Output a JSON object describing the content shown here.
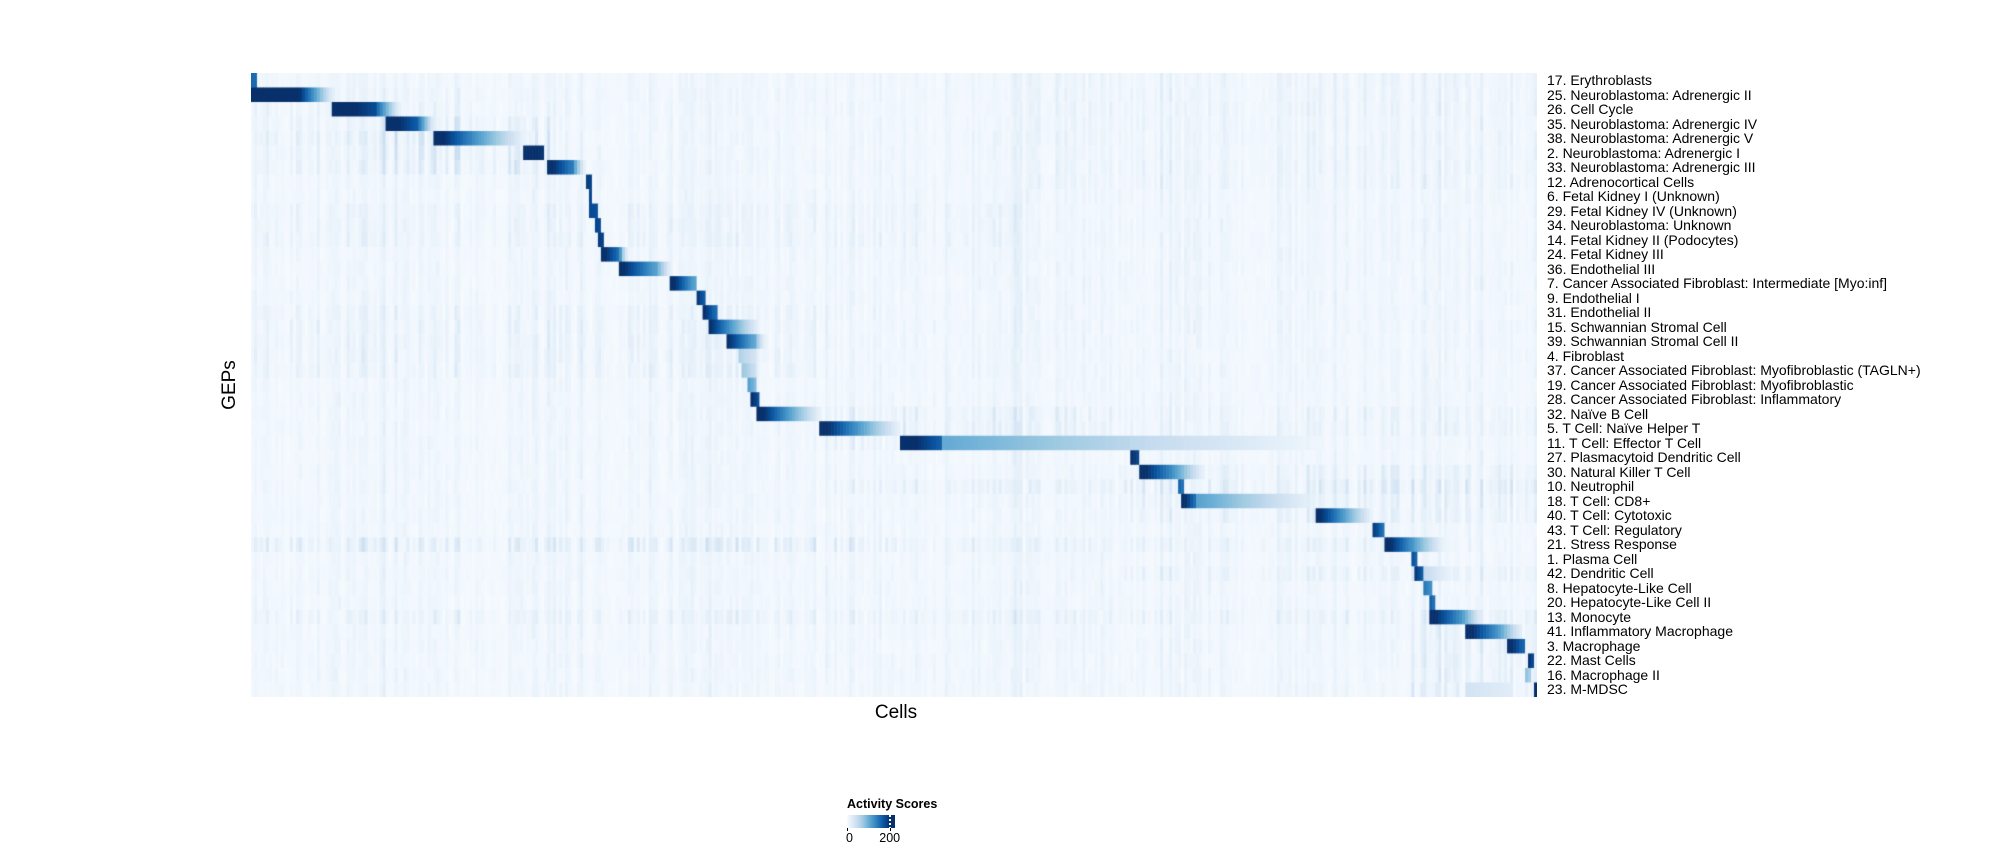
{
  "figure": {
    "background": "#ffffff"
  },
  "chart_data": {
    "type": "heatmap",
    "title": "",
    "xlabel": "Cells",
    "ylabel": "GEPs",
    "grid": false,
    "value_range": [
      0,
      200
    ],
    "legend": {
      "title": "Activity Scores",
      "min_label": "0",
      "max_label": "200",
      "bar_max_value": 225,
      "tick_fraction": 0.889,
      "position": "bottom-center"
    },
    "colormap": {
      "name": "Blues",
      "stops": [
        [
          0,
          "#f7fbff"
        ],
        [
          25,
          "#deebf7"
        ],
        [
          50,
          "#c6dbef"
        ],
        [
          75,
          "#9ecae1"
        ],
        [
          100,
          "#6baed6"
        ],
        [
          125,
          "#4292c6"
        ],
        [
          150,
          "#2171b5"
        ],
        [
          175,
          "#08519c"
        ],
        [
          200,
          "#08306b"
        ],
        [
          230,
          "#08306b"
        ]
      ]
    },
    "render": {
      "n_columns": 430,
      "seed": 42
    },
    "noise": {
      "base": 4,
      "stripe_strength": 9,
      "patches": [
        {
          "rows": [
            2,
            5
          ],
          "x": [
            0,
            0.17
          ],
          "s": 10
        },
        {
          "rows": [
            4,
            7
          ],
          "x": [
            0.1,
            0.232
          ],
          "s": 22
        },
        {
          "rows": [
            5,
            7
          ],
          "x": [
            0,
            0.21
          ],
          "s": 13
        },
        {
          "rows": [
            1,
            21
          ],
          "x": [
            0,
            1
          ],
          "s": 9
        },
        {
          "rows": [
            22,
            43
          ],
          "x": [
            0,
            1
          ],
          "s": 8
        },
        {
          "rows": [
            1,
            8
          ],
          "x": [
            0.6,
            1
          ],
          "s": 7
        },
        {
          "rows": [
            10,
            12
          ],
          "x": [
            0,
            0.6
          ],
          "s": 10
        },
        {
          "rows": [
            17,
            21
          ],
          "x": [
            0,
            0.45
          ],
          "s": 12
        },
        {
          "rows": [
            24,
            26
          ],
          "x": [
            0.44,
            0.67
          ],
          "s": 18
        },
        {
          "rows": [
            24,
            25
          ],
          "x": [
            0.67,
            1
          ],
          "s": 10
        },
        {
          "rows": [
            28,
            31
          ],
          "x": [
            0.67,
            1
          ],
          "s": 16
        },
        {
          "rows": [
            29,
            29
          ],
          "x": [
            0.44,
            1
          ],
          "s": 16
        },
        {
          "rows": [
            33,
            33
          ],
          "x": [
            0,
            0.5
          ],
          "s": 30
        },
        {
          "rows": [
            33,
            33
          ],
          "x": [
            0.5,
            0.9
          ],
          "s": 14
        },
        {
          "rows": [
            35,
            35
          ],
          "x": [
            0.67,
            1
          ],
          "s": 14
        },
        {
          "rows": [
            38,
            38
          ],
          "x": [
            0,
            0.9
          ],
          "s": 14
        },
        {
          "rows": [
            38,
            43
          ],
          "x": [
            0.9,
            1
          ],
          "s": 20
        }
      ]
    },
    "rows": [
      {
        "label": "17. Erythroblasts",
        "segments": [
          [
            0,
            0.004,
            155,
            155
          ]
        ]
      },
      {
        "label": "25. Neuroblastoma: Adrenergic II",
        "segments": [
          [
            0,
            0.037,
            230,
            205
          ],
          [
            0.037,
            0.063,
            205,
            20
          ]
        ]
      },
      {
        "label": "26. Cell Cycle",
        "segments": [
          [
            0.064,
            0.0955,
            225,
            180
          ],
          [
            0.0955,
            0.115,
            180,
            15
          ]
        ]
      },
      {
        "label": "35. Neuroblastoma: Adrenergic IV",
        "segments": [
          [
            0.1065,
            0.129,
            225,
            165
          ],
          [
            0.129,
            0.142,
            165,
            15
          ]
        ]
      },
      {
        "label": "38. Neuroblastoma: Adrenergic V",
        "segments": [
          [
            0.144,
            0.1705,
            220,
            135
          ],
          [
            0.1705,
            0.2135,
            135,
            10
          ]
        ]
      },
      {
        "label": "2. Neuroblastoma: Adrenergic I",
        "segments": [
          [
            0.2135,
            0.226,
            225,
            195
          ]
        ]
      },
      {
        "label": "33. Neuroblastoma: Adrenergic III",
        "segments": [
          [
            0.2315,
            0.2495,
            215,
            140
          ],
          [
            0.2495,
            0.259,
            140,
            12
          ]
        ]
      },
      {
        "label": "12. Adrenocortical Cells",
        "segments": [
          [
            0.2609,
            0.2633,
            190,
            185
          ]
        ]
      },
      {
        "label": "6. Fetal Kidney I (Unknown)",
        "segments": [
          [
            0.2633,
            0.2649,
            185,
            180
          ]
        ]
      },
      {
        "label": "29. Fetal Kidney IV (Unknown)",
        "segments": [
          [
            0.2649,
            0.268,
            180,
            175
          ]
        ]
      },
      {
        "label": "34. Neuroblastoma: Unknown",
        "segments": [
          [
            0.268,
            0.2703,
            185,
            180
          ]
        ]
      },
      {
        "label": "14. Fetal Kidney II (Podocytes)",
        "segments": [
          [
            0.2703,
            0.2727,
            195,
            185
          ]
        ]
      },
      {
        "label": "24. Fetal Kidney III",
        "segments": [
          [
            0.2727,
            0.286,
            215,
            150
          ],
          [
            0.286,
            0.2915,
            150,
            18
          ]
        ]
      },
      {
        "label": "36. Endothelial III",
        "segments": [
          [
            0.2875,
            0.3147,
            210,
            110
          ],
          [
            0.3147,
            0.3264,
            110,
            12
          ]
        ]
      },
      {
        "label": "7. Cancer Associated Fibroblast: Intermediate [Myo:inf]",
        "segments": [
          [
            0.3272,
            0.3443,
            215,
            110
          ]
        ]
      },
      {
        "label": "9. Endothelial I",
        "segments": [
          [
            0.3466,
            0.3521,
            200,
            165
          ]
        ]
      },
      {
        "label": "31. Endothelial II",
        "segments": [
          [
            0.3521,
            0.3606,
            205,
            155
          ]
        ]
      },
      {
        "label": "15. Schwannian Stromal Cell",
        "segments": [
          [
            0.356,
            0.3716,
            210,
            125
          ],
          [
            0.3716,
            0.395,
            125,
            12
          ]
        ]
      },
      {
        "label": "39. Schwannian Stromal Cell II",
        "segments": [
          [
            0.3716,
            0.391,
            200,
            105
          ],
          [
            0.391,
            0.399,
            105,
            12
          ]
        ]
      },
      {
        "label": "4. Fibroblast",
        "segments": [
          [
            0.3795,
            0.3918,
            65,
            35
          ]
        ]
      },
      {
        "label": "37. Cancer Associated Fibroblast: Myofibroblastic (TAGLN+)",
        "segments": [
          [
            0.3835,
            0.3926,
            75,
            40
          ]
        ]
      },
      {
        "label": "19. Cancer Associated Fibroblast: Myofibroblastic",
        "segments": [
          [
            0.387,
            0.3926,
            115,
            85
          ]
        ]
      },
      {
        "label": "28. Cancer Associated Fibroblast: Inflammatory",
        "segments": [
          [
            0.3895,
            0.395,
            205,
            170
          ]
        ]
      },
      {
        "label": "32. Naïve B Cell",
        "segments": [
          [
            0.395,
            0.4183,
            215,
            115
          ],
          [
            0.4183,
            0.4432,
            115,
            12
          ]
        ]
      },
      {
        "label": "5. T Cell: Naïve Helper T",
        "segments": [
          [
            0.4432,
            0.4704,
            220,
            125
          ],
          [
            0.4704,
            0.504,
            125,
            15
          ]
        ]
      },
      {
        "label": "11. T Cell: Effector T Cell",
        "segments": [
          [
            0.5055,
            0.535,
            225,
            165
          ],
          [
            0.535,
            0.831,
            105,
            8
          ]
        ]
      },
      {
        "label": "27. Plasmacytoid Dendritic Cell",
        "segments": [
          [
            0.6839,
            0.6886,
            210,
            185
          ]
        ]
      },
      {
        "label": "30. Natural Killer T Cell",
        "segments": [
          [
            0.6925,
            0.7158,
            215,
            130
          ],
          [
            0.7158,
            0.74,
            130,
            15
          ]
        ]
      },
      {
        "label": "10. Neutrophil",
        "segments": [
          [
            0.7213,
            0.7244,
            165,
            145
          ]
        ]
      },
      {
        "label": "18. T Cell: CD8+",
        "segments": [
          [
            0.7244,
            0.7337,
            220,
            150
          ],
          [
            0.7337,
            0.8288,
            115,
            10
          ]
        ]
      },
      {
        "label": "40. T Cell: Cytotoxic",
        "segments": [
          [
            0.8288,
            0.8506,
            215,
            110
          ],
          [
            0.8506,
            0.8716,
            110,
            12
          ]
        ]
      },
      {
        "label": "43. T Cell: Regulatory",
        "segments": [
          [
            0.8739,
            0.8802,
            190,
            145
          ]
        ]
      },
      {
        "label": "21. Stress Response",
        "segments": [
          [
            0.8833,
            0.9028,
            215,
            120
          ],
          [
            0.9028,
            0.927,
            120,
            12
          ]
        ]
      },
      {
        "label": "1. Plasma Cell",
        "segments": [
          [
            0.9035,
            0.906,
            180,
            155
          ]
        ]
      },
      {
        "label": "42. Dendritic Cell",
        "segments": [
          [
            0.905,
            0.9105,
            200,
            165
          ],
          [
            0.9105,
            0.935,
            55,
            8
          ]
        ]
      },
      {
        "label": "8. Hepatocyte-Like Cell",
        "segments": [
          [
            0.9137,
            0.9168,
            145,
            125
          ]
        ]
      },
      {
        "label": "20. Hepatocyte-Like Cell II",
        "segments": [
          [
            0.9168,
            0.92,
            170,
            145
          ]
        ]
      },
      {
        "label": "13. Monocyte",
        "segments": [
          [
            0.9168,
            0.9417,
            220,
            120
          ],
          [
            0.9417,
            0.956,
            120,
            18
          ]
        ]
      },
      {
        "label": "41. Inflammatory Macrophage",
        "segments": [
          [
            0.9464,
            0.9697,
            215,
            120
          ],
          [
            0.9697,
            0.987,
            120,
            20
          ]
        ]
      },
      {
        "label": "3. Macrophage",
        "segments": [
          [
            0.979,
            0.9884,
            210,
            160
          ]
        ]
      },
      {
        "label": "22. Mast Cells",
        "segments": [
          [
            0.9939,
            0.997,
            200,
            175
          ]
        ]
      },
      {
        "label": "16. Macrophage II",
        "segments": [
          [
            0.9915,
            0.9946,
            85,
            65
          ]
        ]
      },
      {
        "label": "23. M-MDSC",
        "segments": [
          [
            0.9456,
            0.979,
            38,
            22
          ],
          [
            0.9977,
            1.0,
            220,
            195
          ]
        ]
      }
    ]
  }
}
